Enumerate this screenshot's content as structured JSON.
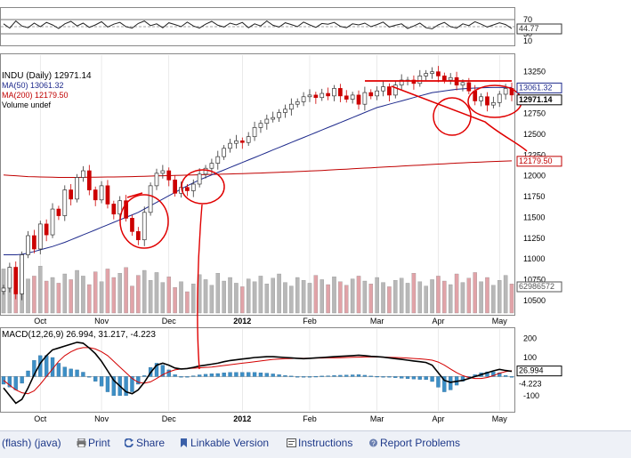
{
  "colors": {
    "price_up": "#333333",
    "price_down": "#cc0000",
    "ma50": "#1e2a8c",
    "ma200": "#c00000",
    "volume_up": "#b8b8b8",
    "volume_down": "#e1a3a8",
    "macd_line": "#000000",
    "signal_line": "#d40000",
    "histogram": "#3d8fc6",
    "annotation": "#e00000",
    "grid": "#dddddd"
  },
  "chart_data": [
    {
      "type": "line",
      "name": "RSI",
      "title": "",
      "y_ticks": [
        "70",
        "50",
        "30",
        "10"
      ],
      "ylim": [
        0,
        100
      ],
      "current_label": "44.77",
      "values": [
        58,
        46,
        66,
        52,
        47,
        60,
        50,
        62,
        55,
        45,
        58,
        65,
        52,
        60,
        48,
        55,
        64,
        49,
        57,
        62,
        50,
        46,
        59,
        66,
        53,
        58,
        47,
        61,
        56,
        50,
        63,
        52,
        46,
        57,
        65,
        54,
        49,
        60,
        55,
        62,
        47,
        58,
        52,
        66,
        54,
        49,
        61,
        56,
        50,
        63,
        55,
        48,
        59,
        57,
        62,
        51,
        47,
        58,
        55,
        60,
        50,
        56,
        63,
        49,
        54,
        58,
        45,
        52,
        60,
        47,
        44,
        55,
        62,
        50,
        46,
        58,
        53,
        64,
        57,
        49,
        55,
        61,
        56,
        44.77
      ]
    },
    {
      "type": "line",
      "name": "price",
      "title": "INDU (Daily) 12971.14",
      "legend": [
        "MA(50) 13061.32",
        "MA(200) 12179.50",
        "Volume undef"
      ],
      "x_tick_labels": [
        "Oct",
        "Nov",
        "Dec",
        "2012",
        "Feb",
        "Mar",
        "Apr",
        "May"
      ],
      "y_ticks": [
        "13250",
        "12750",
        "12500",
        "12250",
        "12000",
        "11750",
        "11500",
        "11250",
        "11000",
        "10750",
        "10500"
      ],
      "ylim": [
        10350,
        13450
      ],
      "current_labels": [
        "13061.32",
        "12971.14",
        "12179.50",
        "62986572"
      ],
      "close": [
        10650,
        10900,
        10580,
        11050,
        11280,
        11120,
        11420,
        11290,
        11600,
        11520,
        11830,
        11720,
        11980,
        12060,
        11830,
        11710,
        11880,
        11660,
        11540,
        11700,
        11490,
        11330,
        11230,
        11560,
        11880,
        12030,
        12060,
        11950,
        11790,
        11860,
        11820,
        11900,
        12020,
        12090,
        12150,
        12230,
        12330,
        12390,
        12420,
        12400,
        12470,
        12580,
        12630,
        12680,
        12700,
        12760,
        12800,
        12860,
        12890,
        12950,
        12970,
        12940,
        12990,
        12960,
        13050,
        12960,
        12920,
        12970,
        12860,
        13000,
        12960,
        13020,
        13070,
        12970,
        13090,
        13150,
        13150,
        13110,
        13200,
        13230,
        13250,
        13200,
        13150,
        13180,
        13090,
        13120,
        13020,
        12900,
        12950,
        12850,
        12880,
        12980,
        13050,
        12971.14
      ],
      "ma50": [
        11050,
        11050,
        11050,
        11055,
        11070,
        11090,
        11110,
        11130,
        11150,
        11175,
        11200,
        11230,
        11260,
        11290,
        11320,
        11350,
        11380,
        11410,
        11440,
        11470,
        11500,
        11530,
        11560,
        11600,
        11640,
        11680,
        11720,
        11760,
        11800,
        11840,
        11880,
        11915,
        11950,
        11980,
        12010,
        12040,
        12070,
        12100,
        12130,
        12160,
        12190,
        12220,
        12250,
        12280,
        12310,
        12340,
        12370,
        12400,
        12430,
        12460,
        12490,
        12520,
        12550,
        12580,
        12610,
        12640,
        12670,
        12700,
        12730,
        12760,
        12790,
        12820,
        12840,
        12860,
        12880,
        12900,
        12920,
        12940,
        12960,
        12980,
        13000,
        13010,
        13020,
        13030,
        13040,
        13045,
        13050,
        13055,
        13058,
        13060,
        13061,
        13061,
        13061,
        13061.32
      ],
      "ma200": [
        12010,
        12005,
        12000,
        11995,
        11990,
        11988,
        11986,
        11984,
        11982,
        11980,
        11980,
        11980,
        11980,
        11981,
        11982,
        11983,
        11984,
        11985,
        11986,
        11987,
        11988,
        11990,
        11992,
        11994,
        11996,
        11998,
        12000,
        12002,
        12004,
        12006,
        12008,
        12010,
        12012,
        12014,
        12016,
        12018,
        12020,
        12022,
        12024,
        12026,
        12028,
        12030,
        12033,
        12036,
        12039,
        12042,
        12045,
        12048,
        12051,
        12054,
        12057,
        12060,
        12064,
        12068,
        12072,
        12076,
        12080,
        12084,
        12088,
        12092,
        12096,
        12100,
        12104,
        12108,
        12112,
        12116,
        12120,
        12124,
        12128,
        12132,
        12136,
        12140,
        12144,
        12148,
        12152,
        12156,
        12159,
        12162,
        12165,
        12168,
        12171,
        12174,
        12177,
        12179.5
      ],
      "volume_share": [
        0.62,
        0.55,
        0.58,
        0.7,
        0.48,
        0.52,
        0.66,
        0.45,
        0.5,
        0.42,
        0.55,
        0.47,
        0.6,
        0.52,
        0.4,
        0.58,
        0.44,
        0.62,
        0.5,
        0.56,
        0.64,
        0.38,
        0.53,
        0.6,
        0.46,
        0.57,
        0.43,
        0.51,
        0.36,
        0.44,
        0.3,
        0.41,
        0.54,
        0.47,
        0.39,
        0.56,
        0.45,
        0.5,
        0.42,
        0.37,
        0.48,
        0.44,
        0.52,
        0.41,
        0.49,
        0.55,
        0.43,
        0.38,
        0.5,
        0.46,
        0.42,
        0.53,
        0.47,
        0.4,
        0.51,
        0.44,
        0.39,
        0.48,
        0.52,
        0.45,
        0.41,
        0.5,
        0.43,
        0.37,
        0.46,
        0.49,
        0.42,
        0.56,
        0.44,
        0.38,
        0.47,
        0.52,
        0.45,
        0.4,
        0.55,
        0.43,
        0.49,
        0.57,
        0.44,
        0.5,
        0.39,
        0.46,
        0.53,
        0.41
      ]
    },
    {
      "type": "line",
      "name": "MACD",
      "title": "MACD(12,26,9) 26.994, 31.217, -4.223",
      "x_tick_labels": [
        "Oct",
        "Nov",
        "Dec",
        "2012",
        "Feb",
        "Mar",
        "Apr",
        "May"
      ],
      "y_ticks": [
        "200",
        "100",
        "-100"
      ],
      "ylim": [
        -180,
        240
      ],
      "current_labels": [
        "26.994",
        "-4.223"
      ],
      "macd": [
        -60,
        -100,
        -140,
        -120,
        -60,
        10,
        70,
        110,
        140,
        150,
        160,
        170,
        180,
        175,
        150,
        120,
        80,
        30,
        -20,
        -50,
        -80,
        -90,
        -70,
        -30,
        20,
        60,
        70,
        60,
        45,
        40,
        42,
        48,
        55,
        60,
        65,
        70,
        78,
        84,
        88,
        92,
        96,
        100,
        102,
        104,
        104,
        102,
        100,
        98,
        96,
        94,
        96,
        98,
        100,
        102,
        104,
        106,
        108,
        110,
        112,
        110,
        106,
        104,
        102,
        98,
        94,
        90,
        86,
        82,
        78,
        74,
        60,
        20,
        -20,
        -30,
        -25,
        -20,
        -10,
        0,
        10,
        20,
        30,
        38,
        32,
        26.994
      ],
      "signal": [
        -20,
        -45,
        -70,
        -85,
        -90,
        -75,
        -40,
        0,
        40,
        80,
        110,
        130,
        145,
        152,
        152,
        145,
        130,
        110,
        80,
        50,
        20,
        -10,
        -30,
        -35,
        -28,
        -10,
        10,
        25,
        35,
        40,
        42,
        44,
        46,
        48,
        50,
        54,
        58,
        62,
        66,
        70,
        74,
        78,
        82,
        86,
        90,
        92,
        94,
        95,
        96,
        96,
        96,
        97,
        97,
        98,
        98,
        99,
        100,
        101,
        102,
        103,
        103,
        103,
        102,
        101,
        100,
        99,
        97,
        95,
        93,
        90,
        86,
        76,
        60,
        40,
        20,
        5,
        -5,
        -10,
        -10,
        -5,
        5,
        18,
        26,
        31.217
      ]
    }
  ],
  "footer": {
    "links": [
      "(flash) (java)",
      "Print",
      "Share",
      "Linkable Version",
      "Instructions",
      "Report Problems"
    ]
  }
}
